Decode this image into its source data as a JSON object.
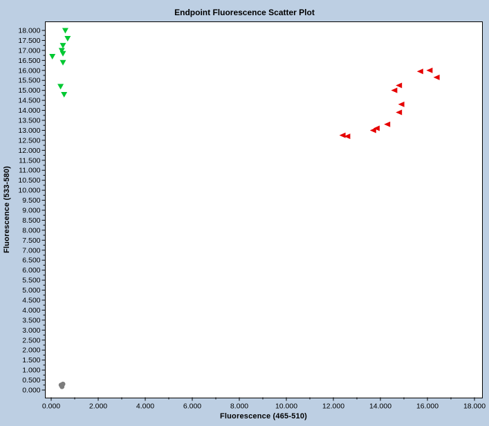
{
  "title": "Endpoint Fluorescence Scatter Plot",
  "chart_data": {
    "type": "scatter",
    "title": "Endpoint Fluorescence Scatter Plot",
    "xlabel": "Fluorescence (465-510)",
    "ylabel": "Fluorescence (533-580)",
    "xlim": [
      0,
      18
    ],
    "ylim": [
      0,
      18
    ],
    "grid": false,
    "legend": "none",
    "x_tick_labels": [
      "0.000",
      "2.000",
      "4.000",
      "6.000",
      "8.000",
      "10.000",
      "12.000",
      "14.000",
      "16.000",
      "18.000"
    ],
    "x_minor_step": 1.0,
    "y_tick_labels": [
      "18.000",
      "17.500",
      "17.000",
      "16.500",
      "16.000",
      "15.500",
      "15.000",
      "14.500",
      "14.000",
      "13.500",
      "13.000",
      "12.500",
      "12.000",
      "11.500",
      "11.000",
      "10.500",
      "10.000",
      "9.500",
      "9.000",
      "8.500",
      "8.000",
      "7.500",
      "7.000",
      "6.500",
      "6.000",
      "5.500",
      "5.000",
      "4.500",
      "4.000",
      "3.500",
      "3.000",
      "2.500",
      "2.000",
      "1.500",
      "1.000",
      "0.500",
      "0.000"
    ],
    "y_minor_step": 0.25,
    "series": [
      {
        "name": "green-triangles",
        "marker": "triangle-down",
        "color": "#00c832",
        "points": [
          [
            0.6,
            18.0
          ],
          [
            0.7,
            17.6
          ],
          [
            0.5,
            17.25
          ],
          [
            0.45,
            17.0
          ],
          [
            0.5,
            16.85
          ],
          [
            0.05,
            16.7
          ],
          [
            0.5,
            16.4
          ],
          [
            0.4,
            15.2
          ],
          [
            0.55,
            14.8
          ]
        ]
      },
      {
        "name": "red-triangles",
        "marker": "triangle-left",
        "color": "#e60000",
        "points": [
          [
            12.4,
            12.75
          ],
          [
            12.6,
            12.7
          ],
          [
            13.7,
            13.0
          ],
          [
            13.85,
            13.1
          ],
          [
            14.3,
            13.3
          ],
          [
            14.8,
            13.9
          ],
          [
            14.9,
            14.3
          ],
          [
            14.6,
            15.0
          ],
          [
            14.8,
            15.25
          ],
          [
            15.7,
            15.95
          ],
          [
            16.1,
            16.0
          ],
          [
            16.4,
            15.65
          ]
        ]
      },
      {
        "name": "gray-dots",
        "marker": "circle",
        "color": "#7d7d7d",
        "points": [
          [
            0.42,
            0.25
          ],
          [
            0.5,
            0.3
          ],
          [
            0.46,
            0.17
          ]
        ]
      }
    ],
    "colors": {
      "background": "#bdcfe3",
      "plot_background": "#ffffff",
      "axis": "#000000"
    }
  }
}
